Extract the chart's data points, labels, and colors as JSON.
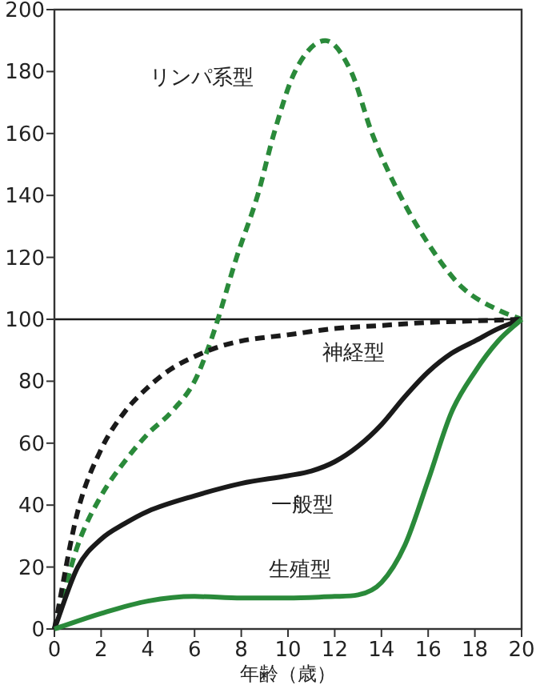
{
  "chart_data": {
    "type": "line",
    "xlabel": "年齢（歳）",
    "xlim": [
      0,
      20
    ],
    "ylim": [
      0,
      200
    ],
    "xticks": [
      0,
      2,
      4,
      6,
      8,
      10,
      12,
      14,
      16,
      18,
      20
    ],
    "yticks": [
      0,
      20,
      40,
      60,
      80,
      100,
      120,
      140,
      160,
      180,
      200
    ],
    "grid": false,
    "legend": false,
    "ref_lines": [
      {
        "axis": "y",
        "value": 100,
        "color": "#1a1a1a"
      }
    ],
    "series": [
      {
        "name": "リンパ系型",
        "color": "#2a8a3a",
        "line_style": "dashed",
        "x": [
          0,
          1,
          2,
          3,
          4,
          5,
          6,
          6.6,
          7,
          7.8,
          8.7,
          9.4,
          10.3,
          11.6,
          12.7,
          13.6,
          14.8,
          16.4,
          17.5,
          19,
          20
        ],
        "values": [
          0,
          27,
          43,
          54,
          63,
          70,
          80,
          91,
          100,
          120,
          140,
          160,
          180,
          190,
          180,
          160,
          140,
          120,
          110,
          103,
          100
        ]
      },
      {
        "name": "神経型",
        "color": "#1a1a1a",
        "line_style": "dashed",
        "x": [
          0,
          1,
          2,
          3,
          4,
          5,
          6,
          7,
          8,
          10,
          12,
          14,
          16,
          18,
          20
        ],
        "values": [
          0,
          38,
          58,
          70,
          78,
          84,
          88,
          91,
          93,
          95,
          97,
          98,
          99,
          99.5,
          100
        ]
      },
      {
        "name": "一般型",
        "color": "#1a1a1a",
        "line_style": "solid",
        "x": [
          0,
          1,
          2,
          3,
          4,
          6,
          8,
          10,
          11,
          12,
          13,
          14,
          15,
          16,
          17,
          18,
          19,
          20
        ],
        "values": [
          0,
          20,
          29,
          34,
          38,
          43,
          47,
          49.5,
          51,
          54,
          59,
          66,
          75,
          83,
          89,
          93,
          97,
          100
        ]
      },
      {
        "name": "生殖型",
        "color": "#2a8a3a",
        "line_style": "solid",
        "x": [
          0,
          2,
          4,
          6,
          8,
          10,
          12,
          13,
          14,
          15,
          16,
          17,
          18,
          19,
          20
        ],
        "values": [
          0,
          5,
          9,
          10.5,
          10,
          10,
          10.5,
          11,
          15,
          27,
          48,
          70,
          83,
          93,
          100
        ]
      }
    ]
  }
}
